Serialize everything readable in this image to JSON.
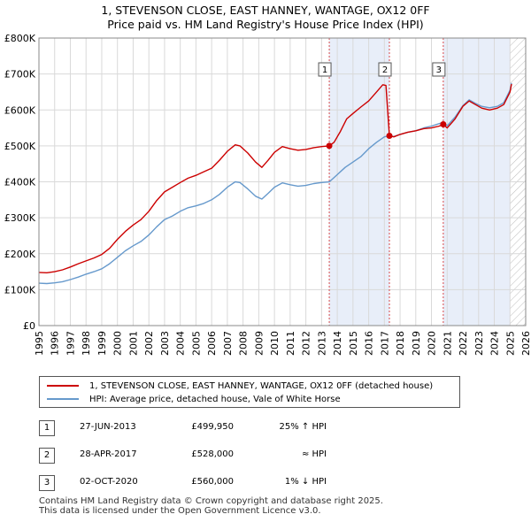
{
  "title": "1, STEVENSON CLOSE, EAST HANNEY, WANTAGE, OX12 0FF",
  "subtitle": "Price paid vs. HM Land Registry's House Price Index (HPI)",
  "chart_data": {
    "type": "line",
    "xlim": [
      1995,
      2026
    ],
    "ylim": [
      0,
      800000
    ],
    "y_ticks": [
      {
        "value": 0,
        "label": "£0"
      },
      {
        "value": 100000,
        "label": "£100K"
      },
      {
        "value": 200000,
        "label": "£200K"
      },
      {
        "value": 300000,
        "label": "£300K"
      },
      {
        "value": 400000,
        "label": "£400K"
      },
      {
        "value": 500000,
        "label": "£500K"
      },
      {
        "value": 600000,
        "label": "£600K"
      },
      {
        "value": 700000,
        "label": "£700K"
      },
      {
        "value": 800000,
        "label": "£800K"
      }
    ],
    "x_ticks": [
      "1995",
      "1996",
      "1997",
      "1998",
      "1999",
      "2000",
      "2001",
      "2002",
      "2003",
      "2004",
      "2005",
      "2006",
      "2007",
      "2008",
      "2009",
      "2010",
      "2011",
      "2012",
      "2013",
      "2014",
      "2015",
      "2016",
      "2017",
      "2018",
      "2019",
      "2020",
      "2021",
      "2022",
      "2023",
      "2024",
      "2025",
      "2026"
    ],
    "grid": true,
    "series": [
      {
        "name": "1, STEVENSON CLOSE, EAST HANNEY, WANTAGE, OX12 0FF (detached house)",
        "color": "#cc0000",
        "points": [
          [
            1995.0,
            148000
          ],
          [
            1995.5,
            147000
          ],
          [
            1996.0,
            150000
          ],
          [
            1996.5,
            155000
          ],
          [
            1997.0,
            163000
          ],
          [
            1997.5,
            172000
          ],
          [
            1998.0,
            180000
          ],
          [
            1998.5,
            188000
          ],
          [
            1999.0,
            198000
          ],
          [
            1999.5,
            215000
          ],
          [
            2000.0,
            240000
          ],
          [
            2000.5,
            262000
          ],
          [
            2001.0,
            280000
          ],
          [
            2001.5,
            295000
          ],
          [
            2002.0,
            318000
          ],
          [
            2002.5,
            348000
          ],
          [
            2003.0,
            372000
          ],
          [
            2003.5,
            385000
          ],
          [
            2004.0,
            398000
          ],
          [
            2004.5,
            410000
          ],
          [
            2005.0,
            418000
          ],
          [
            2005.5,
            428000
          ],
          [
            2006.0,
            438000
          ],
          [
            2006.5,
            460000
          ],
          [
            2007.0,
            485000
          ],
          [
            2007.5,
            503000
          ],
          [
            2007.8,
            500000
          ],
          [
            2008.3,
            480000
          ],
          [
            2008.8,
            455000
          ],
          [
            2009.2,
            440000
          ],
          [
            2009.6,
            460000
          ],
          [
            2010.0,
            482000
          ],
          [
            2010.5,
            498000
          ],
          [
            2011.0,
            492000
          ],
          [
            2011.5,
            488000
          ],
          [
            2012.0,
            490000
          ],
          [
            2012.5,
            495000
          ],
          [
            2013.0,
            498000
          ],
          [
            2013.49,
            499950
          ],
          [
            2013.8,
            510000
          ],
          [
            2014.2,
            540000
          ],
          [
            2014.6,
            575000
          ],
          [
            2015.0,
            590000
          ],
          [
            2015.5,
            608000
          ],
          [
            2016.0,
            625000
          ],
          [
            2016.5,
            650000
          ],
          [
            2016.9,
            670000
          ],
          [
            2017.1,
            668000
          ],
          [
            2017.32,
            528000
          ],
          [
            2017.6,
            525000
          ],
          [
            2018.0,
            532000
          ],
          [
            2018.5,
            538000
          ],
          [
            2019.0,
            542000
          ],
          [
            2019.5,
            548000
          ],
          [
            2020.0,
            550000
          ],
          [
            2020.5,
            555000
          ],
          [
            2020.75,
            560000
          ],
          [
            2021.0,
            550000
          ],
          [
            2021.5,
            575000
          ],
          [
            2022.0,
            610000
          ],
          [
            2022.4,
            625000
          ],
          [
            2022.8,
            615000
          ],
          [
            2023.2,
            605000
          ],
          [
            2023.7,
            600000
          ],
          [
            2024.2,
            605000
          ],
          [
            2024.6,
            615000
          ],
          [
            2025.0,
            650000
          ],
          [
            2025.1,
            672000
          ]
        ]
      },
      {
        "name": "HPI: Average price, detached house, Vale of White Horse",
        "color": "#6699cc",
        "points": [
          [
            1995.0,
            118000
          ],
          [
            1995.5,
            117000
          ],
          [
            1996.0,
            119000
          ],
          [
            1996.5,
            122000
          ],
          [
            1997.0,
            128000
          ],
          [
            1997.5,
            135000
          ],
          [
            1998.0,
            143000
          ],
          [
            1998.5,
            150000
          ],
          [
            1999.0,
            158000
          ],
          [
            1999.5,
            172000
          ],
          [
            2000.0,
            190000
          ],
          [
            2000.5,
            208000
          ],
          [
            2001.0,
            222000
          ],
          [
            2001.5,
            234000
          ],
          [
            2002.0,
            252000
          ],
          [
            2002.5,
            275000
          ],
          [
            2003.0,
            295000
          ],
          [
            2003.5,
            305000
          ],
          [
            2004.0,
            318000
          ],
          [
            2004.5,
            328000
          ],
          [
            2005.0,
            333000
          ],
          [
            2005.5,
            340000
          ],
          [
            2006.0,
            350000
          ],
          [
            2006.5,
            365000
          ],
          [
            2007.0,
            385000
          ],
          [
            2007.5,
            400000
          ],
          [
            2007.8,
            398000
          ],
          [
            2008.3,
            380000
          ],
          [
            2008.8,
            360000
          ],
          [
            2009.2,
            352000
          ],
          [
            2009.6,
            368000
          ],
          [
            2010.0,
            385000
          ],
          [
            2010.5,
            397000
          ],
          [
            2011.0,
            392000
          ],
          [
            2011.5,
            388000
          ],
          [
            2012.0,
            390000
          ],
          [
            2012.5,
            395000
          ],
          [
            2013.0,
            398000
          ],
          [
            2013.5,
            400000
          ],
          [
            2014.0,
            420000
          ],
          [
            2014.5,
            440000
          ],
          [
            2015.0,
            455000
          ],
          [
            2015.5,
            470000
          ],
          [
            2016.0,
            492000
          ],
          [
            2016.5,
            510000
          ],
          [
            2017.0,
            525000
          ],
          [
            2017.3,
            528000
          ],
          [
            2017.6,
            526000
          ],
          [
            2018.0,
            532000
          ],
          [
            2018.5,
            538000
          ],
          [
            2019.0,
            542000
          ],
          [
            2019.5,
            550000
          ],
          [
            2020.0,
            555000
          ],
          [
            2020.5,
            562000
          ],
          [
            2020.75,
            566000
          ],
          [
            2021.0,
            556000
          ],
          [
            2021.5,
            580000
          ],
          [
            2022.0,
            612000
          ],
          [
            2022.4,
            628000
          ],
          [
            2022.8,
            618000
          ],
          [
            2023.2,
            610000
          ],
          [
            2023.7,
            606000
          ],
          [
            2024.2,
            610000
          ],
          [
            2024.6,
            620000
          ],
          [
            2025.0,
            655000
          ],
          [
            2025.1,
            675000
          ]
        ]
      }
    ],
    "sales": [
      {
        "id": "1",
        "x": 2013.49,
        "value": 499950
      },
      {
        "id": "2",
        "x": 2017.32,
        "value": 528000
      },
      {
        "id": "3",
        "x": 2020.75,
        "value": 560000
      }
    ],
    "shaded_periods": [
      [
        2013.49,
        2017.32
      ],
      [
        2020.75,
        2025.0
      ]
    ],
    "future_hatch_from": 2025.0
  },
  "legend": {
    "property_label": "1, STEVENSON CLOSE, EAST HANNEY, WANTAGE, OX12 0FF (detached house)",
    "hpi_label": "HPI: Average price, detached house, Vale of White Horse",
    "property_color": "#cc0000",
    "hpi_color": "#6699cc"
  },
  "transactions": [
    {
      "id": "1",
      "date": "27-JUN-2013",
      "price": "£499,950",
      "diff": "25% ↑ HPI"
    },
    {
      "id": "2",
      "date": "28-APR-2017",
      "price": "£528,000",
      "diff": "≈ HPI"
    },
    {
      "id": "3",
      "date": "02-OCT-2020",
      "price": "£560,000",
      "diff": "1% ↓ HPI"
    }
  ],
  "footer": {
    "line1": "Contains HM Land Registry data © Crown copyright and database right 2025.",
    "line2": "This data is licensed under the Open Government Licence v3.0."
  }
}
